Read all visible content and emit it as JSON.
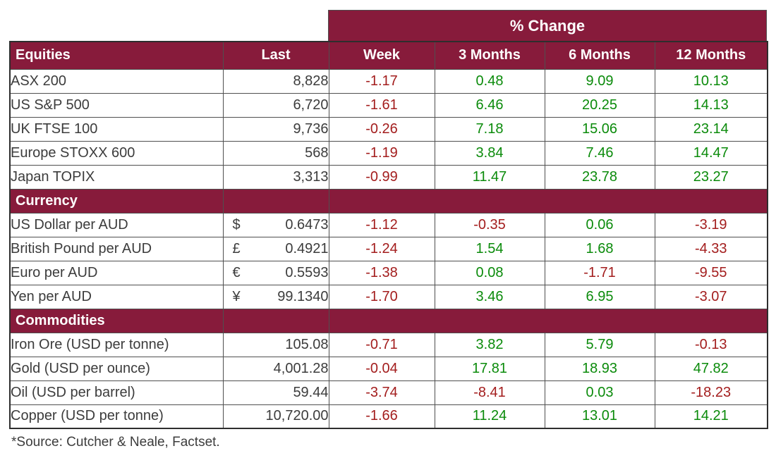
{
  "chart_data": {
    "type": "table",
    "banner": "% Change",
    "columns": [
      "Last",
      "Week",
      "3 Months",
      "6 Months",
      "12 Months"
    ],
    "sections": [
      {
        "title": "Equities",
        "rows": [
          {
            "label": "ASX 200",
            "last": "8,828",
            "changes": [
              "-1.17",
              "0.48",
              "9.09",
              "10.13"
            ]
          },
          {
            "label": "US S&P 500",
            "last": "6,720",
            "changes": [
              "-1.61",
              "6.46",
              "20.25",
              "14.13"
            ]
          },
          {
            "label": "UK FTSE 100",
            "last": "9,736",
            "changes": [
              "-0.26",
              "7.18",
              "15.06",
              "23.14"
            ]
          },
          {
            "label": "Europe STOXX 600",
            "last": "568",
            "changes": [
              "-1.19",
              "3.84",
              "7.46",
              "14.47"
            ]
          },
          {
            "label": "Japan TOPIX",
            "last": "3,313",
            "changes": [
              "-0.99",
              "11.47",
              "23.78",
              "23.27"
            ]
          }
        ]
      },
      {
        "title": "Currency",
        "rows": [
          {
            "label": "US Dollar per AUD",
            "symbol": "$",
            "last": "0.6473",
            "changes": [
              "-1.12",
              "-0.35",
              "0.06",
              "-3.19"
            ]
          },
          {
            "label": "British Pound per AUD",
            "symbol": "£",
            "last": "0.4921",
            "changes": [
              "-1.24",
              "1.54",
              "1.68",
              "-4.33"
            ]
          },
          {
            "label": "Euro per AUD",
            "symbol": "€",
            "last": "0.5593",
            "changes": [
              "-1.38",
              "0.08",
              "-1.71",
              "-9.55"
            ]
          },
          {
            "label": "Yen per AUD",
            "symbol": "¥",
            "last": "99.1340",
            "changes": [
              "-1.70",
              "3.46",
              "6.95",
              "-3.07"
            ]
          }
        ]
      },
      {
        "title": "Commodities",
        "rows": [
          {
            "label": "Iron Ore (USD per tonne)",
            "last": "105.08",
            "changes": [
              "-0.71",
              "3.82",
              "5.79",
              "-0.13"
            ]
          },
          {
            "label": "Gold (USD per ounce)",
            "last": "4,001.28",
            "changes": [
              "-0.04",
              "17.81",
              "18.93",
              "47.82"
            ]
          },
          {
            "label": "Oil (USD per barrel)",
            "last": "59.44",
            "changes": [
              "-3.74",
              "-8.41",
              "0.03",
              "-18.23"
            ]
          },
          {
            "label": "Copper (USD per tonne)",
            "last": "10,720.00",
            "changes": [
              "-1.66",
              "11.24",
              "13.01",
              "14.21"
            ]
          }
        ]
      }
    ],
    "source_note": "*Source: Cutcher & Neale, Factset.",
    "colors": {
      "header_bg": "#871B3B",
      "negative": "#A31D1D",
      "positive": "#0B8B0B",
      "text": "#3C3C3C",
      "grid": "#4F4F4F",
      "outer": "#2E2E2E"
    }
  }
}
